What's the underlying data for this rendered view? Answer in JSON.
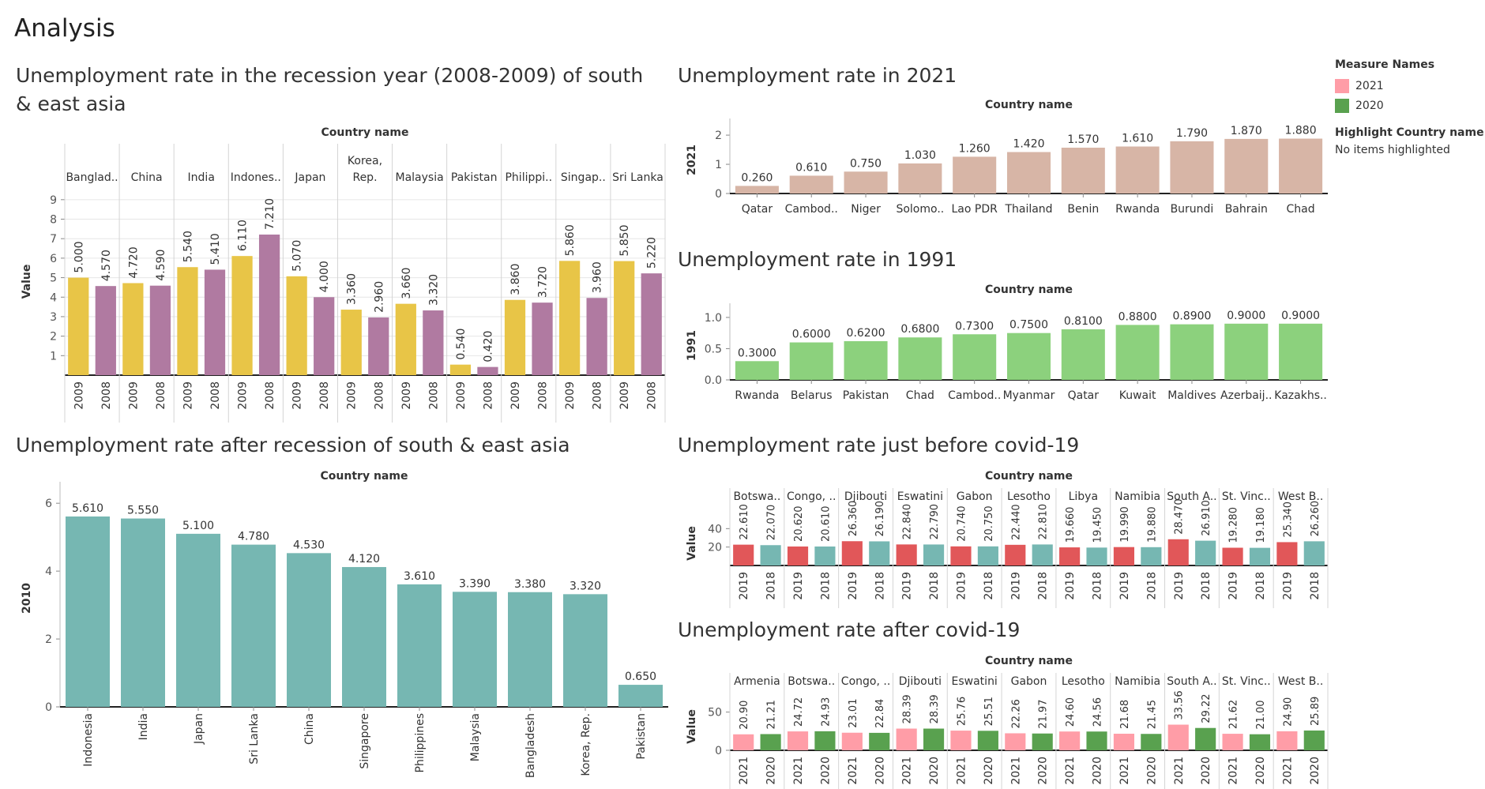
{
  "page_title": "Analysis",
  "legend": {
    "title": "Measure Names",
    "items": [
      {
        "label": "2021",
        "color": "#ff9da7"
      },
      {
        "label": "2020",
        "color": "#59a14f"
      }
    ],
    "highlight_title": "Highlight Country name",
    "highlight_value": "No items highlighted"
  },
  "chart_data": [
    {
      "id": "recession",
      "type": "bar",
      "title": "Unemployment rate in the recession year (2008-2009) of south & east asia",
      "header_label": "Country name",
      "ylabel": "Value",
      "ylim": [
        0,
        9.6
      ],
      "ticks": [
        "1",
        "2",
        "3",
        "4",
        "5",
        "6",
        "7",
        "8",
        "9"
      ],
      "tick_values": [
        1,
        2,
        3,
        4,
        5,
        6,
        7,
        8,
        9
      ],
      "grid": true,
      "value_labels_rotated": true,
      "category_labels_rotated": true,
      "groups": [
        {
          "name": "Banglad..",
          "categories": [
            "2009",
            "2008"
          ],
          "values": [
            5.0,
            4.57
          ],
          "labels": [
            "5.000",
            "4.570"
          ]
        },
        {
          "name": "China",
          "categories": [
            "2009",
            "2008"
          ],
          "values": [
            4.72,
            4.59
          ],
          "labels": [
            "4.720",
            "4.590"
          ]
        },
        {
          "name": "India",
          "categories": [
            "2009",
            "2008"
          ],
          "values": [
            5.54,
            5.41
          ],
          "labels": [
            "5.540",
            "5.410"
          ]
        },
        {
          "name": "Indones..",
          "categories": [
            "2009",
            "2008"
          ],
          "values": [
            6.11,
            7.21
          ],
          "labels": [
            "6.110",
            "7.210"
          ]
        },
        {
          "name": "Japan",
          "categories": [
            "2009",
            "2008"
          ],
          "values": [
            5.07,
            4.0
          ],
          "labels": [
            "5.070",
            "4.000"
          ]
        },
        {
          "name": "Korea,\nRep.",
          "categories": [
            "2009",
            "2008"
          ],
          "values": [
            3.36,
            2.96
          ],
          "labels": [
            "3.360",
            "2.960"
          ]
        },
        {
          "name": "Malaysia",
          "categories": [
            "2009",
            "2008"
          ],
          "values": [
            3.66,
            3.32
          ],
          "labels": [
            "3.660",
            "3.320"
          ]
        },
        {
          "name": "Pakistan",
          "categories": [
            "2009",
            "2008"
          ],
          "values": [
            0.54,
            0.42
          ],
          "labels": [
            "0.540",
            "0.420"
          ]
        },
        {
          "name": "Philippi..",
          "categories": [
            "2009",
            "2008"
          ],
          "values": [
            3.86,
            3.72
          ],
          "labels": [
            "3.860",
            "3.720"
          ]
        },
        {
          "name": "Singap..",
          "categories": [
            "2009",
            "2008"
          ],
          "values": [
            5.86,
            3.96
          ],
          "labels": [
            "5.860",
            "3.960"
          ]
        },
        {
          "name": "Sri Lanka",
          "categories": [
            "2009",
            "2008"
          ],
          "values": [
            5.85,
            5.22
          ],
          "labels": [
            "5.850",
            "5.220"
          ]
        }
      ],
      "colors": [
        "#e8c547",
        "#b07aa1"
      ]
    },
    {
      "id": "y2021",
      "type": "bar",
      "title": "Unemployment rate in 2021",
      "header_label": "Country name",
      "ylabel": "2021",
      "ylim": [
        0,
        2.3
      ],
      "ticks": [
        "0",
        "1",
        "2"
      ],
      "tick_values": [
        0,
        1,
        2
      ],
      "grid": false,
      "categories": [
        "Qatar",
        "Cambod..",
        "Niger",
        "Solomo..",
        "Lao PDR",
        "Thailand",
        "Benin",
        "Rwanda",
        "Burundi",
        "Bahrain",
        "Chad"
      ],
      "values": [
        0.26,
        0.61,
        0.75,
        1.03,
        1.26,
        1.42,
        1.57,
        1.61,
        1.79,
        1.87,
        1.88
      ],
      "labels": [
        "0.260",
        "0.610",
        "0.750",
        "1.030",
        "1.260",
        "1.420",
        "1.570",
        "1.610",
        "1.790",
        "1.870",
        "1.880"
      ],
      "colors": [
        "#d7b5a6"
      ]
    },
    {
      "id": "y1991",
      "type": "bar",
      "title": "Unemployment rate in 1991",
      "header_label": "Country name",
      "ylabel": "1991",
      "ylim": [
        0,
        1.1
      ],
      "ticks": [
        "0.0",
        "0.5",
        "1.0"
      ],
      "tick_values": [
        0,
        0.5,
        1.0
      ],
      "grid": false,
      "categories": [
        "Rwanda",
        "Belarus",
        "Pakistan",
        "Chad",
        "Cambod..",
        "Myanmar",
        "Qatar",
        "Kuwait",
        "Maldives",
        "Azerbaij..",
        "Kazakhs.."
      ],
      "values": [
        0.3,
        0.6,
        0.62,
        0.68,
        0.73,
        0.75,
        0.81,
        0.88,
        0.89,
        0.9,
        0.9
      ],
      "labels": [
        "0.3000",
        "0.6000",
        "0.6200",
        "0.6800",
        "0.7300",
        "0.7500",
        "0.8100",
        "0.8800",
        "0.8900",
        "0.9000",
        "0.9000"
      ],
      "colors": [
        "#8cd17d"
      ]
    },
    {
      "id": "after_recession",
      "type": "bar",
      "title": "Unemployment rate after recession of south & east asia",
      "header_label": "Country name",
      "ylabel": "2010",
      "ylim": [
        0,
        6.4
      ],
      "ticks": [
        "0",
        "2",
        "4",
        "6"
      ],
      "tick_values": [
        0,
        2,
        4,
        6
      ],
      "grid": false,
      "categories": [
        "Indonesia",
        "India",
        "Japan",
        "Sri Lanka",
        "China",
        "Singapore",
        "Philippines",
        "Malaysia",
        "Bangladesh",
        "Korea, Rep.",
        "Pakistan"
      ],
      "values": [
        5.61,
        5.55,
        5.1,
        4.78,
        4.53,
        4.12,
        3.61,
        3.39,
        3.38,
        3.32,
        0.65
      ],
      "labels": [
        "5.610",
        "5.550",
        "5.100",
        "4.780",
        "4.530",
        "4.120",
        "3.610",
        "3.390",
        "3.380",
        "3.320",
        "0.650"
      ],
      "colors": [
        "#76b7b2"
      ]
    },
    {
      "id": "before_covid",
      "type": "bar",
      "title": "Unemployment rate just before covid-19",
      "header_label": "Country name",
      "ylabel": "Value",
      "ylim": [
        0,
        48
      ],
      "ticks": [
        "20",
        "40"
      ],
      "tick_values": [
        20,
        40
      ],
      "grid": false,
      "value_labels_rotated": true,
      "category_labels_rotated": true,
      "groups": [
        {
          "name": "Botswa..",
          "categories": [
            "2019",
            "2018"
          ],
          "values": [
            22.61,
            22.07
          ],
          "labels": [
            "22.610",
            "22.070"
          ]
        },
        {
          "name": "Congo, ..",
          "categories": [
            "2019",
            "2018"
          ],
          "values": [
            20.62,
            20.61
          ],
          "labels": [
            "20.620",
            "20.610"
          ]
        },
        {
          "name": "Djibouti",
          "categories": [
            "2019",
            "2018"
          ],
          "values": [
            26.36,
            26.19
          ],
          "labels": [
            "26.360",
            "26.190"
          ]
        },
        {
          "name": "Eswatini",
          "categories": [
            "2019",
            "2018"
          ],
          "values": [
            22.84,
            22.79
          ],
          "labels": [
            "22.840",
            "22.790"
          ]
        },
        {
          "name": "Gabon",
          "categories": [
            "2019",
            "2018"
          ],
          "values": [
            20.74,
            20.75
          ],
          "labels": [
            "20.740",
            "20.750"
          ]
        },
        {
          "name": "Lesotho",
          "categories": [
            "2019",
            "2018"
          ],
          "values": [
            22.44,
            22.81
          ],
          "labels": [
            "22.440",
            "22.810"
          ]
        },
        {
          "name": "Libya",
          "categories": [
            "2019",
            "2018"
          ],
          "values": [
            19.66,
            19.45
          ],
          "labels": [
            "19.660",
            "19.450"
          ]
        },
        {
          "name": "Namibia",
          "categories": [
            "2019",
            "2018"
          ],
          "values": [
            19.99,
            19.88
          ],
          "labels": [
            "19.990",
            "19.880"
          ]
        },
        {
          "name": "South A..",
          "categories": [
            "2019",
            "2018"
          ],
          "values": [
            28.47,
            26.91
          ],
          "labels": [
            "28.470",
            "26.910"
          ]
        },
        {
          "name": "St. Vinc..",
          "categories": [
            "2019",
            "2018"
          ],
          "values": [
            19.28,
            19.18
          ],
          "labels": [
            "19.280",
            "19.180"
          ]
        },
        {
          "name": "West B..",
          "categories": [
            "2019",
            "2018"
          ],
          "values": [
            25.34,
            26.26
          ],
          "labels": [
            "25.340",
            "26.260"
          ]
        }
      ],
      "colors": [
        "#e15759",
        "#76b7b2"
      ]
    },
    {
      "id": "after_covid",
      "type": "bar",
      "title": "Unemployment rate after covid-19",
      "header_label": "Country name",
      "ylabel": "Value",
      "ylim": [
        0,
        62
      ],
      "ticks": [
        "0",
        "50"
      ],
      "tick_values": [
        0,
        50
      ],
      "grid": false,
      "value_labels_rotated": true,
      "category_labels_rotated": true,
      "groups": [
        {
          "name": "Armenia",
          "categories": [
            "2021",
            "2020"
          ],
          "values": [
            20.9,
            21.21
          ],
          "labels": [
            "20.90",
            "21.21"
          ]
        },
        {
          "name": "Botswa..",
          "categories": [
            "2021",
            "2020"
          ],
          "values": [
            24.72,
            24.93
          ],
          "labels": [
            "24.72",
            "24.93"
          ]
        },
        {
          "name": "Congo, ..",
          "categories": [
            "2021",
            "2020"
          ],
          "values": [
            23.01,
            22.84
          ],
          "labels": [
            "23.01",
            "22.84"
          ]
        },
        {
          "name": "Djibouti",
          "categories": [
            "2021",
            "2020"
          ],
          "values": [
            28.39,
            28.39
          ],
          "labels": [
            "28.39",
            "28.39"
          ]
        },
        {
          "name": "Eswatini",
          "categories": [
            "2021",
            "2020"
          ],
          "values": [
            25.76,
            25.51
          ],
          "labels": [
            "25.76",
            "25.51"
          ]
        },
        {
          "name": "Gabon",
          "categories": [
            "2021",
            "2020"
          ],
          "values": [
            22.26,
            21.97
          ],
          "labels": [
            "22.26",
            "21.97"
          ]
        },
        {
          "name": "Lesotho",
          "categories": [
            "2021",
            "2020"
          ],
          "values": [
            24.6,
            24.56
          ],
          "labels": [
            "24.60",
            "24.56"
          ]
        },
        {
          "name": "Namibia",
          "categories": [
            "2021",
            "2020"
          ],
          "values": [
            21.68,
            21.45
          ],
          "labels": [
            "21.68",
            "21.45"
          ]
        },
        {
          "name": "South A..",
          "categories": [
            "2021",
            "2020"
          ],
          "values": [
            33.56,
            29.22
          ],
          "labels": [
            "33.56",
            "29.22"
          ]
        },
        {
          "name": "St. Vinc..",
          "categories": [
            "2021",
            "2020"
          ],
          "values": [
            21.62,
            21.0
          ],
          "labels": [
            "21.62",
            "21.00"
          ]
        },
        {
          "name": "West B..",
          "categories": [
            "2021",
            "2020"
          ],
          "values": [
            24.9,
            25.89
          ],
          "labels": [
            "24.90",
            "25.89"
          ]
        }
      ],
      "colors": [
        "#ff9da7",
        "#59a14f"
      ]
    }
  ]
}
